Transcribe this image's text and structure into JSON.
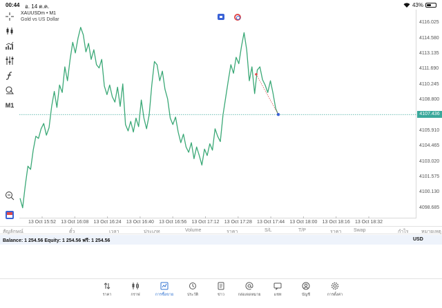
{
  "status_bar": {
    "time": "00:44",
    "date": "อ. 14 ต.ค.",
    "battery": "43%"
  },
  "symbol": {
    "title": "XAUUSDm • M1",
    "description": "Gold vs US Dollar"
  },
  "toolbar": {
    "timeframe": "M1"
  },
  "chart_data": {
    "type": "line",
    "x_ticks": [
      "13 Oct 15:52",
      "13 Oct 16:08",
      "13 Oct 16:24",
      "13 Oct 16:40",
      "13 Oct 16:56",
      "13 Oct 17:12",
      "13 Oct 17:28",
      "13 Oct 17:44",
      "13 Oct 18:00",
      "13 Oct 18:16",
      "13 Oct 18:32"
    ],
    "y_ticks": [
      4116.025,
      4114.58,
      4113.135,
      4111.69,
      4110.245,
      4108.8,
      4105.91,
      4104.465,
      4103.02,
      4101.575,
      4100.13,
      4098.685
    ],
    "ylim": [
      4097.9,
      4117.0
    ],
    "current_price": "4107.436",
    "current_price_value": 4107.436,
    "color": "#3aa876",
    "series": [
      {
        "values": [
          4099.6,
          4098.7,
          4100.8,
          4102.6,
          4102.3,
          4104.1,
          4105.4,
          4105.2,
          4106.1,
          4106.6,
          4105.5,
          4106.2,
          4108.2,
          4109.6,
          4108.1,
          4110.2,
          4109.5,
          4111.9,
          4110.6,
          4112.6,
          4114.2,
          4113.2,
          4114.6,
          4115.6,
          4114.9,
          4113.3,
          4114.1,
          4112.6,
          4113.5,
          4112.1,
          4111.8,
          4112.6,
          4110.1,
          4109.3,
          4110.2,
          4109.1,
          4108.6,
          4110.0,
          4108.2,
          4110.3,
          4106.5,
          4105.9,
          4106.8,
          4105.8,
          4107.1,
          4106.3,
          4108.8,
          4107.1,
          4106.1,
          4107.4,
          4110.2,
          4112.4,
          4112.1,
          4110.6,
          4111.5,
          4109.8,
          4108.9,
          4107.1,
          4106.5,
          4107.2,
          4105.8,
          4104.8,
          4105.6,
          4104.4,
          4103.9,
          4104.8,
          4103.3,
          4104.4,
          4103.6,
          4102.7,
          4104.2,
          4103.6,
          4104.7,
          4104.1,
          4106.1,
          4105.4,
          4104.9,
          4107.4,
          4109.0,
          4110.6,
          4112.1,
          4111.3,
          4112.8,
          4112.2,
          4113.8,
          4115.1,
          4113.5,
          4110.6,
          4111.9,
          4109.4,
          4111.6,
          4111.9,
          4110.7,
          4110.2,
          4109.5,
          4110.6,
          4109.4,
          4108.0,
          4107.4
        ]
      }
    ],
    "pending_order": {
      "from": 4111.2,
      "to": 4107.436
    }
  },
  "table_header": {
    "columns": [
      "สัญลักษณ์",
      "ตั๋ว",
      "เวลา",
      "ประเภท",
      "Volume",
      "ราคา",
      "S/L",
      "T/P",
      "ราคา",
      "Swap",
      "กำไร",
      "หมายเหตุ"
    ]
  },
  "balance": {
    "summary": "Balance: 1 254.56 Equity: 1 254.56 ฟรี: 1 254.56",
    "currency": "USD"
  },
  "bottom_nav": {
    "items": [
      {
        "icon": "quotes-icon",
        "label": "ราคา"
      },
      {
        "icon": "chart-icon",
        "label": "กราฟ"
      },
      {
        "icon": "trade-icon",
        "label": "การซื้อขาย"
      },
      {
        "icon": "history-icon",
        "label": "ประวัติ"
      },
      {
        "icon": "news-icon",
        "label": "ข่าว"
      },
      {
        "icon": "mailbox-icon",
        "label": "กล่องจดหมาย"
      },
      {
        "icon": "chat-icon",
        "label": "แชท"
      },
      {
        "icon": "account-icon",
        "label": "บัญชี"
      },
      {
        "icon": "settings-icon",
        "label": "การตั้งค่า"
      }
    ],
    "active_index": 2
  }
}
